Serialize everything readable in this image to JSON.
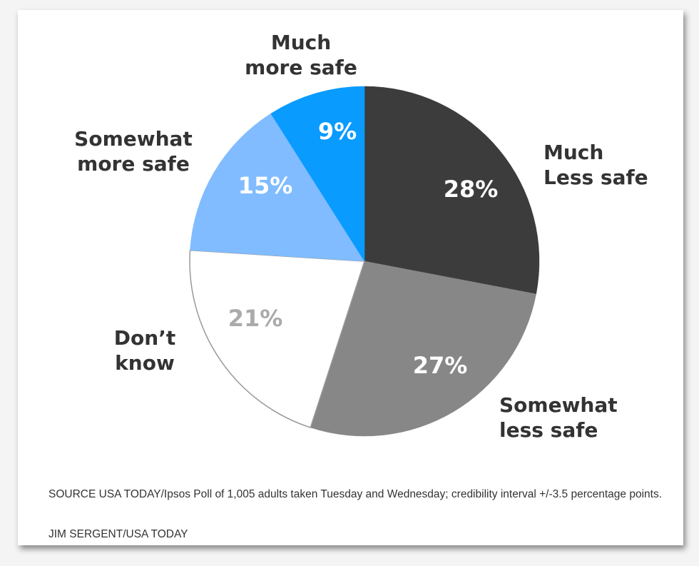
{
  "chart_data": {
    "type": "pie",
    "slices": [
      {
        "label": "Much\nLess safe",
        "value": 28,
        "value_label": "28%",
        "color": "#3c3c3c",
        "text_color": "#ffffff"
      },
      {
        "label": "Somewhat\nless safe",
        "value": 27,
        "value_label": "27%",
        "color": "#878787",
        "text_color": "#ffffff"
      },
      {
        "label": "Don’t\nknow",
        "value": 21,
        "value_label": "21%",
        "color": "#ffffff",
        "text_color": "#aaaaaa"
      },
      {
        "label": "Somewhat\nmore safe",
        "value": 15,
        "value_label": "15%",
        "color": "#80bcff",
        "text_color": "#ffffff"
      },
      {
        "label": "Much\nmore safe",
        "value": 9,
        "value_label": "9%",
        "color": "#0a9bff",
        "text_color": "#ffffff"
      }
    ],
    "start": "top",
    "direction": "clockwise"
  },
  "footer": {
    "source": "SOURCE USA TODAY/Ipsos Poll of 1,005 adults taken Tuesday and Wednesday; credibility interval +/-3.5 percentage points.",
    "credit": "JIM SERGENT/USA TODAY"
  }
}
